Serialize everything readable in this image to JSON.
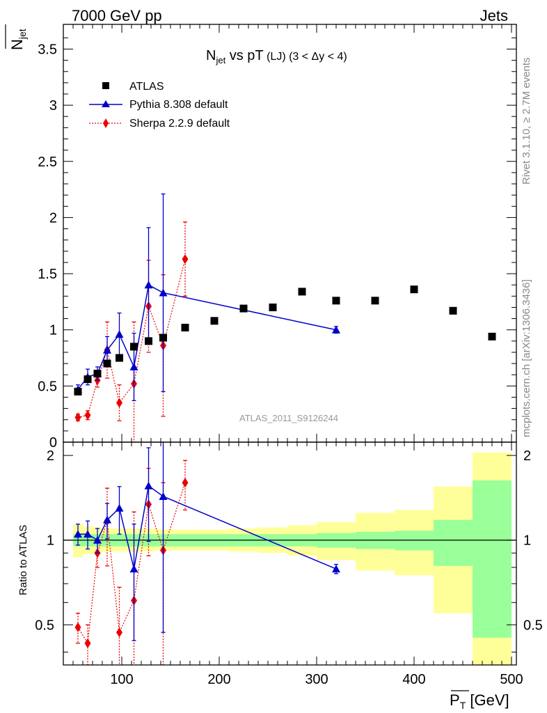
{
  "header": {
    "left": "7000 GeV pp",
    "right": "Jets"
  },
  "side_text": {
    "rivet": "Rivet 3.1.10, ≥ 2.7M events",
    "mcplots": "mcplots.cern.ch [arXiv:1306.3436]"
  },
  "analysis_id": "ATLAS_2011_S9126244",
  "title": {
    "main": "N",
    "main_sub": "jet",
    "mid": " vs pT",
    "small": " (LJ) (3 < Δy < 4)"
  },
  "ylabel_top": {
    "main": "N",
    "sub": "jet"
  },
  "ylabel_bottom": "Ratio to ATLAS",
  "xlabel": {
    "main": "P",
    "sub": "T",
    "unit": " [GeV]"
  },
  "legend": [
    {
      "label": "ATLAS",
      "color": "#000000",
      "marker": "square"
    },
    {
      "label": "Pythia 8.308 default",
      "color": "#0000cc",
      "marker": "triangle"
    },
    {
      "label": "Sherpa 2.2.9 default",
      "color": "#ee0000",
      "marker": "diamond"
    }
  ],
  "chart_data": {
    "type": "scatter",
    "x_range": [
      40,
      505
    ],
    "top_ylim": [
      0,
      3.72
    ],
    "top_yticks": [
      "0",
      "0.5",
      "1",
      "1.5",
      "2",
      "2.5",
      "3",
      "3.5"
    ],
    "ratio_ylim": [
      0.36,
      2.23
    ],
    "ratio_yticks": [
      "0.5",
      "1",
      "2"
    ],
    "xticks": [
      "100",
      "200",
      "300",
      "400",
      "500"
    ],
    "atlas": {
      "x": [
        55,
        65,
        75,
        85,
        97.5,
        112.5,
        127.5,
        142.5,
        165,
        195,
        225,
        255,
        285,
        320,
        360,
        400,
        440,
        480
      ],
      "y": [
        0.45,
        0.56,
        0.61,
        0.7,
        0.75,
        0.85,
        0.9,
        0.93,
        1.02,
        1.08,
        1.19,
        1.2,
        1.34,
        1.26,
        1.26,
        1.36,
        1.17,
        0.94
      ],
      "bins": [
        [
          50,
          60
        ],
        [
          60,
          70
        ],
        [
          70,
          80
        ],
        [
          80,
          90
        ],
        [
          90,
          105
        ],
        [
          105,
          120
        ],
        [
          120,
          135
        ],
        [
          135,
          150
        ],
        [
          150,
          180
        ],
        [
          180,
          210
        ],
        [
          210,
          240
        ],
        [
          240,
          270
        ],
        [
          270,
          300
        ],
        [
          300,
          340
        ],
        [
          340,
          380
        ],
        [
          380,
          420
        ],
        [
          420,
          460
        ],
        [
          460,
          500
        ]
      ],
      "band_inner": [
        [
          0.95,
          1.05
        ],
        [
          0.95,
          1.05
        ],
        [
          0.95,
          1.05
        ],
        [
          0.95,
          1.05
        ],
        [
          0.95,
          1.05
        ],
        [
          0.95,
          1.05
        ],
        [
          0.95,
          1.05
        ],
        [
          0.95,
          1.05
        ],
        [
          0.95,
          1.05
        ],
        [
          0.95,
          1.05
        ],
        [
          0.95,
          1.05
        ],
        [
          0.95,
          1.05
        ],
        [
          0.95,
          1.05
        ],
        [
          0.94,
          1.06
        ],
        [
          0.93,
          1.07
        ],
        [
          0.92,
          1.08
        ],
        [
          0.81,
          1.18
        ],
        [
          0.45,
          1.63
        ]
      ],
      "band_outer": [
        [
          0.87,
          1.14
        ],
        [
          0.89,
          1.12
        ],
        [
          0.9,
          1.11
        ],
        [
          0.91,
          1.1
        ],
        [
          0.91,
          1.1
        ],
        [
          0.91,
          1.1
        ],
        [
          0.91,
          1.1
        ],
        [
          0.92,
          1.09
        ],
        [
          0.92,
          1.09
        ],
        [
          0.92,
          1.09
        ],
        [
          0.91,
          1.1
        ],
        [
          0.9,
          1.11
        ],
        [
          0.88,
          1.13
        ],
        [
          0.85,
          1.16
        ],
        [
          0.78,
          1.25
        ],
        [
          0.75,
          1.28
        ],
        [
          0.55,
          1.55
        ],
        [
          0.36,
          2.05
        ]
      ]
    },
    "pythia": {
      "x": [
        55,
        65,
        75,
        85,
        97.5,
        112.5,
        127.5,
        142.5,
        320
      ],
      "y": [
        0.47,
        0.58,
        0.61,
        0.82,
        0.96,
        0.67,
        1.4,
        1.33,
        1.0
      ],
      "err": [
        0.04,
        0.07,
        0.06,
        0.12,
        0.19,
        0.3,
        0.51,
        0.88,
        0.03
      ],
      "ratio": [
        1.05,
        1.05,
        1.0,
        1.18,
        1.3,
        0.79,
        1.56,
        1.43,
        0.79
      ],
      "ratio_err": [
        0.09,
        0.12,
        0.1,
        0.17,
        0.25,
        0.35,
        0.57,
        0.96,
        0.03
      ]
    },
    "sherpa": {
      "x": [
        55,
        65,
        75,
        85,
        97.5,
        112.5,
        127.5,
        142.5,
        165
      ],
      "y": [
        0.22,
        0.24,
        0.55,
        0.82,
        0.35,
        0.52,
        1.21,
        0.86,
        1.63
      ],
      "err": [
        0.03,
        0.04,
        0.06,
        0.25,
        0.16,
        0.55,
        0.41,
        0.63,
        0.33
      ],
      "ratio": [
        0.49,
        0.43,
        0.9,
        1.17,
        0.47,
        0.61,
        1.34,
        0.92,
        1.6
      ],
      "ratio_err": [
        0.06,
        0.07,
        0.1,
        0.36,
        0.21,
        0.65,
        0.46,
        0.68,
        0.32
      ]
    }
  }
}
